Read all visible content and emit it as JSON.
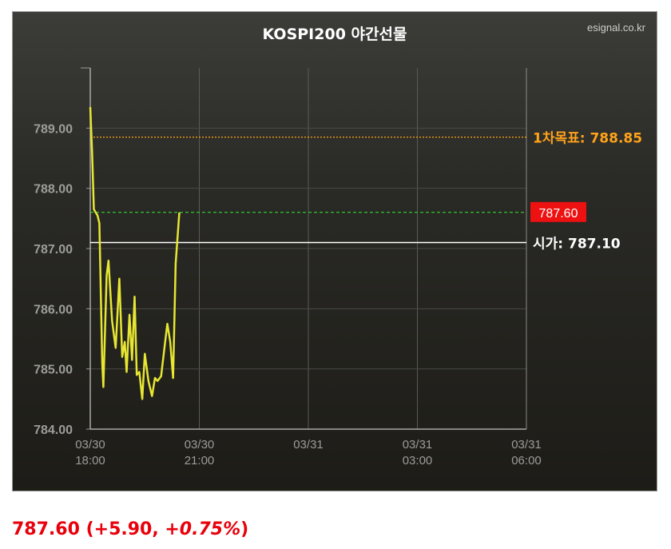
{
  "chart_data": {
    "type": "line",
    "title": "KOSPI200 야간선물",
    "source": "esignal.co.kr",
    "y_ticks": [
      "789.00",
      "788.00",
      "787.00",
      "786.00",
      "785.00",
      "784.00"
    ],
    "x_ticks": [
      {
        "date": "03/30",
        "time": "18:00"
      },
      {
        "date": "03/30",
        "time": "21:00"
      },
      {
        "date": "03/31",
        "time": ""
      },
      {
        "date": "03/31",
        "time": "03:00"
      },
      {
        "date": "03/31",
        "time": "06:00"
      }
    ],
    "ylim": [
      784.0,
      790.0
    ],
    "x_range_hours": [
      0,
      12
    ],
    "grid": true,
    "series": [
      {
        "color": "#e6e633",
        "points": [
          [
            0.0,
            789.35
          ],
          [
            0.05,
            788.6
          ],
          [
            0.1,
            787.65
          ],
          [
            0.2,
            787.55
          ],
          [
            0.25,
            787.42
          ],
          [
            0.33,
            785.1
          ],
          [
            0.36,
            784.7
          ],
          [
            0.45,
            786.55
          ],
          [
            0.5,
            786.8
          ],
          [
            0.6,
            785.8
          ],
          [
            0.7,
            785.35
          ],
          [
            0.8,
            786.5
          ],
          [
            0.88,
            785.2
          ],
          [
            0.95,
            785.45
          ],
          [
            1.0,
            784.95
          ],
          [
            1.08,
            785.9
          ],
          [
            1.15,
            785.15
          ],
          [
            1.22,
            786.2
          ],
          [
            1.28,
            784.9
          ],
          [
            1.35,
            784.95
          ],
          [
            1.43,
            784.5
          ],
          [
            1.5,
            785.25
          ],
          [
            1.6,
            784.8
          ],
          [
            1.7,
            784.55
          ],
          [
            1.78,
            784.85
          ],
          [
            1.85,
            784.8
          ],
          [
            1.95,
            784.88
          ],
          [
            2.05,
            785.4
          ],
          [
            2.12,
            785.75
          ],
          [
            2.2,
            785.45
          ],
          [
            2.28,
            784.85
          ],
          [
            2.35,
            786.75
          ],
          [
            2.45,
            787.6
          ]
        ]
      }
    ],
    "reference_lines": [
      {
        "label": "1차목표: 788.85",
        "value": 788.85,
        "color": "#ffa31a",
        "style": "dotted"
      },
      {
        "label": "787.60",
        "value": 787.6,
        "color": "#33ee33",
        "style": "dashed",
        "badge_bg": "#ee1111"
      },
      {
        "label": "시가: 787.10",
        "value": 787.1,
        "color": "#ffffff",
        "style": "solid"
      }
    ]
  },
  "summary": {
    "price": "787.60",
    "change": "(+5.90, +",
    "pct": "0.75%",
    "close_paren": ")"
  }
}
